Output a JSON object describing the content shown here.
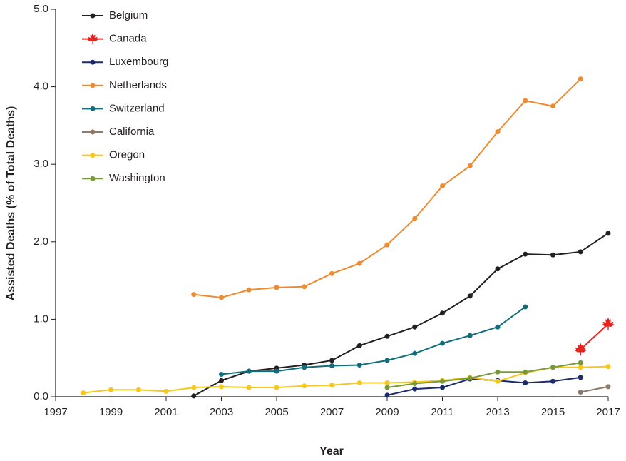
{
  "chart_data": {
    "type": "line",
    "x_label": "Year",
    "y_label": "Assisted Deaths (% of Total Deaths)",
    "x": [
      1998,
      1999,
      2000,
      2001,
      2002,
      2003,
      2004,
      2005,
      2006,
      2007,
      2008,
      2009,
      2010,
      2011,
      2012,
      2013,
      2014,
      2015,
      2016,
      2017
    ],
    "xlim": [
      1997,
      2017
    ],
    "xticks": [
      1997,
      1999,
      2001,
      2003,
      2005,
      2007,
      2009,
      2011,
      2013,
      2015,
      2017
    ],
    "ylim": [
      0,
      5
    ],
    "yticks": [
      {
        "value": 0,
        "label": "0.0"
      },
      {
        "value": 1,
        "label": "1.0"
      },
      {
        "value": 2,
        "label": "2.0"
      },
      {
        "value": 3,
        "label": "3.0"
      },
      {
        "value": 4,
        "label": "4.0"
      },
      {
        "value": 5,
        "label": "5.0"
      }
    ],
    "grid": false,
    "legend": "upper left",
    "series": [
      {
        "name": "Belgium",
        "color": "#231f20",
        "values": [
          null,
          null,
          null,
          null,
          0.01,
          0.21,
          0.33,
          0.37,
          0.41,
          0.47,
          0.66,
          0.78,
          0.9,
          1.08,
          1.3,
          1.65,
          1.84,
          1.83,
          1.87,
          2.11
        ]
      },
      {
        "name": "Canada",
        "color": "#e52420",
        "marker": "leaf",
        "values": [
          null,
          null,
          null,
          null,
          null,
          null,
          null,
          null,
          null,
          null,
          null,
          null,
          null,
          null,
          null,
          null,
          null,
          null,
          0.61,
          0.94
        ]
      },
      {
        "name": "Luxembourg",
        "color": "#1b2a6b",
        "values": [
          null,
          null,
          null,
          null,
          null,
          null,
          null,
          null,
          null,
          null,
          null,
          0.02,
          0.1,
          0.12,
          0.23,
          0.21,
          0.18,
          0.2,
          0.25,
          null
        ]
      },
      {
        "name": "Netherlands",
        "color": "#ef8a2e",
        "values": [
          null,
          null,
          null,
          null,
          1.32,
          1.28,
          1.38,
          1.41,
          1.42,
          1.59,
          1.72,
          1.96,
          2.3,
          2.72,
          2.98,
          3.42,
          3.82,
          3.75,
          4.1,
          null
        ]
      },
      {
        "name": "Switzerland",
        "color": "#0f6e7a",
        "values": [
          null,
          null,
          null,
          null,
          null,
          0.29,
          0.33,
          0.33,
          0.38,
          0.4,
          0.41,
          0.47,
          0.56,
          0.69,
          0.79,
          0.9,
          1.16,
          null,
          null,
          null
        ]
      },
      {
        "name": "California",
        "color": "#8c7a6b",
        "values": [
          null,
          null,
          null,
          null,
          null,
          null,
          null,
          null,
          null,
          null,
          null,
          null,
          null,
          null,
          null,
          null,
          null,
          null,
          0.06,
          0.13
        ]
      },
      {
        "name": "Oregon",
        "color": "#f7c81b",
        "values": [
          0.05,
          0.09,
          0.09,
          0.07,
          0.12,
          0.13,
          0.12,
          0.12,
          0.14,
          0.15,
          0.18,
          0.18,
          0.19,
          0.21,
          0.25,
          0.2,
          0.31,
          0.38,
          0.38,
          0.39
        ]
      },
      {
        "name": "Washington",
        "color": "#7a9a3a",
        "values": [
          null,
          null,
          null,
          null,
          null,
          null,
          null,
          null,
          null,
          null,
          null,
          0.12,
          0.17,
          0.2,
          0.24,
          0.32,
          0.32,
          0.38,
          0.44,
          null
        ]
      }
    ]
  }
}
